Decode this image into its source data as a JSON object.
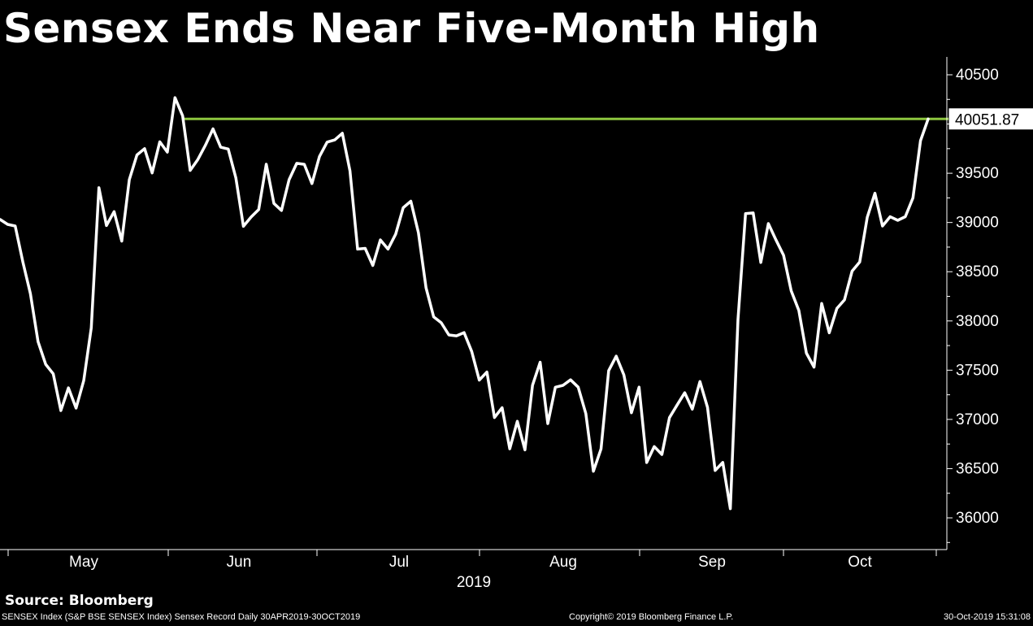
{
  "title": "Sensex Ends Near Five-Month High",
  "source": "Source: Bloomberg",
  "footer": {
    "left": "SENSEX Index (S&P BSE SENSEX Index) Sensex Record  Daily 30APR2019-30OCT2019",
    "middle": "Copyright© 2019 Bloomberg Finance L.P.",
    "right": "30-Oct-2019 15:31:08"
  },
  "colors": {
    "background": "#000000",
    "series": "#ffffff",
    "record_line": "#8dc63f"
  },
  "chart_data": {
    "type": "line",
    "title": "Sensex Ends Near Five-Month High",
    "xlabel": "2019",
    "ylabel": "",
    "x_tick_labels": [
      "May",
      "Jun",
      "Jul",
      "Aug",
      "Sep",
      "Oct"
    ],
    "y_tick_labels": [
      "40500",
      "40000",
      "39500",
      "39000",
      "38500",
      "38000",
      "37500",
      "37000",
      "36500",
      "36000"
    ],
    "ylim": [
      35700,
      40650
    ],
    "grid": false,
    "series": [
      {
        "name": "SENSEX Index",
        "values": [
          39031,
          38981,
          38964,
          38600,
          38277,
          37790,
          37560,
          37463,
          37090,
          37320,
          37115,
          37394,
          37930,
          39353,
          38969,
          39110,
          38811,
          39435,
          39686,
          39750,
          39503,
          39820,
          39715,
          40268,
          40084,
          39529,
          39640,
          39784,
          39951,
          39764,
          39746,
          39453,
          38961,
          39055,
          39131,
          39592,
          39194,
          39122,
          39435,
          39601,
          39591,
          39395,
          39671,
          39816,
          39839,
          39906,
          39524,
          38730,
          38737,
          38564,
          38823,
          38730,
          38881,
          39150,
          39216,
          38897,
          38337,
          38041,
          37982,
          37858,
          37849,
          37882,
          37690,
          37399,
          37481,
          37019,
          37119,
          36702,
          36981,
          36691,
          37347,
          37581,
          36958,
          37327,
          37346,
          37402,
          37328,
          37059,
          36473,
          36700,
          37495,
          37642,
          37452,
          37068,
          37328,
          36562,
          36724,
          36644,
          37018,
          37146,
          37271,
          37104,
          37385,
          37123,
          36481,
          36563,
          36093,
          38014,
          39090,
          39097,
          38594,
          38989,
          38822,
          38667,
          38306,
          38106,
          37673,
          37531,
          38177,
          37880,
          38127,
          38214,
          38506,
          38599,
          39053,
          39297,
          38964,
          39058,
          39022,
          39059,
          39250,
          39831,
          40051.87
        ],
        "last_label": "40051.87"
      }
    ],
    "record_line": {
      "value": 40051.87
    },
    "legend": "none"
  }
}
